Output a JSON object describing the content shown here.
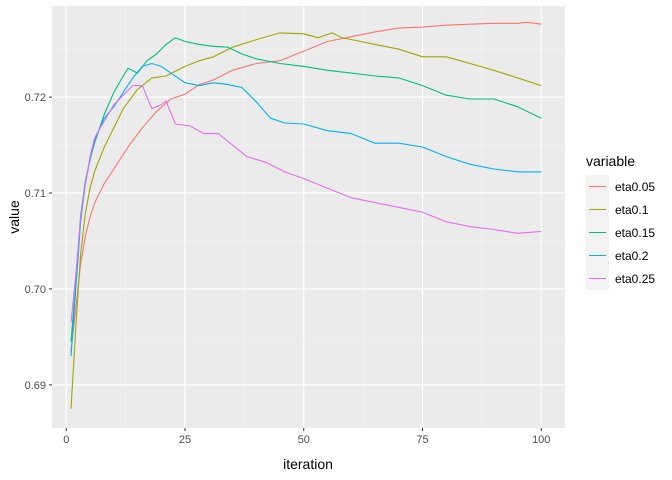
{
  "chart_data": {
    "type": "line",
    "title": "",
    "xlabel": "iteration",
    "ylabel": "value",
    "xlim": [
      -3,
      105
    ],
    "ylim": [
      0.6855,
      0.7295
    ],
    "x_ticks": [
      0,
      25,
      50,
      75,
      100
    ],
    "x_tick_labels": [
      "0",
      "25",
      "50",
      "75",
      "100"
    ],
    "y_ticks": [
      0.69,
      0.7,
      0.71,
      0.72
    ],
    "y_tick_labels": [
      "0.69",
      "0.70",
      "0.71",
      "0.72"
    ],
    "grid": true,
    "legend": {
      "title": "variable",
      "position": "right"
    },
    "series": [
      {
        "name": "eta0.05",
        "color": "#F8766D",
        "points": [
          [
            1,
            0.6935
          ],
          [
            2,
            0.698
          ],
          [
            3,
            0.7025
          ],
          [
            4,
            0.7055
          ],
          [
            5,
            0.7075
          ],
          [
            6,
            0.709
          ],
          [
            8,
            0.711
          ],
          [
            10,
            0.7125
          ],
          [
            13,
            0.7148
          ],
          [
            16,
            0.7168
          ],
          [
            19,
            0.7185
          ],
          [
            22,
            0.7198
          ],
          [
            25,
            0.7203
          ],
          [
            28,
            0.7213
          ],
          [
            31,
            0.7218
          ],
          [
            35,
            0.7228
          ],
          [
            40,
            0.7235
          ],
          [
            45,
            0.7238
          ],
          [
            50,
            0.7248
          ],
          [
            55,
            0.7258
          ],
          [
            60,
            0.7263
          ],
          [
            65,
            0.7268
          ],
          [
            70,
            0.7272
          ],
          [
            75,
            0.7273
          ],
          [
            80,
            0.7275
          ],
          [
            85,
            0.7276
          ],
          [
            90,
            0.7277
          ],
          [
            95,
            0.7277
          ],
          [
            97,
            0.7278
          ],
          [
            100,
            0.7276
          ]
        ]
      },
      {
        "name": "eta0.1",
        "color": "#A3A500",
        "points": [
          [
            1,
            0.6875
          ],
          [
            2,
            0.696
          ],
          [
            3,
            0.7035
          ],
          [
            4,
            0.7078
          ],
          [
            5,
            0.7105
          ],
          [
            6,
            0.7123
          ],
          [
            8,
            0.7148
          ],
          [
            10,
            0.7168
          ],
          [
            12,
            0.7188
          ],
          [
            15,
            0.7208
          ],
          [
            18,
            0.722
          ],
          [
            21,
            0.7222
          ],
          [
            25,
            0.7232
          ],
          [
            28,
            0.7238
          ],
          [
            31,
            0.7242
          ],
          [
            35,
            0.7252
          ],
          [
            40,
            0.726
          ],
          [
            45,
            0.7267
          ],
          [
            50,
            0.7266
          ],
          [
            53,
            0.7262
          ],
          [
            56,
            0.7267
          ],
          [
            58,
            0.7262
          ],
          [
            62,
            0.7258
          ],
          [
            66,
            0.7254
          ],
          [
            70,
            0.725
          ],
          [
            75,
            0.7242
          ],
          [
            80,
            0.7242
          ],
          [
            85,
            0.7235
          ],
          [
            90,
            0.7228
          ],
          [
            95,
            0.722
          ],
          [
            100,
            0.7212
          ]
        ]
      },
      {
        "name": "eta0.15",
        "color": "#00BF7D",
        "points": [
          [
            1,
            0.6945
          ],
          [
            2,
            0.7005
          ],
          [
            3,
            0.7075
          ],
          [
            4,
            0.7112
          ],
          [
            5,
            0.7135
          ],
          [
            6,
            0.7153
          ],
          [
            8,
            0.7182
          ],
          [
            10,
            0.7205
          ],
          [
            12,
            0.7222
          ],
          [
            13,
            0.723
          ],
          [
            15,
            0.7225
          ],
          [
            17,
            0.7238
          ],
          [
            19,
            0.7245
          ],
          [
            21,
            0.7255
          ],
          [
            23,
            0.7262
          ],
          [
            25,
            0.7258
          ],
          [
            28,
            0.7255
          ],
          [
            31,
            0.7253
          ],
          [
            34,
            0.7252
          ],
          [
            37,
            0.7245
          ],
          [
            40,
            0.724
          ],
          [
            45,
            0.7235
          ],
          [
            50,
            0.7232
          ],
          [
            55,
            0.7228
          ],
          [
            60,
            0.7225
          ],
          [
            65,
            0.7222
          ],
          [
            70,
            0.722
          ],
          [
            75,
            0.7212
          ],
          [
            80,
            0.7202
          ],
          [
            85,
            0.7198
          ],
          [
            90,
            0.7198
          ],
          [
            95,
            0.719
          ],
          [
            100,
            0.7178
          ]
        ]
      },
      {
        "name": "eta0.2",
        "color": "#00B0F6",
        "points": [
          [
            1,
            0.693
          ],
          [
            2,
            0.7
          ],
          [
            3,
            0.7068
          ],
          [
            4,
            0.711
          ],
          [
            5,
            0.7135
          ],
          [
            6,
            0.7155
          ],
          [
            8,
            0.7178
          ],
          [
            10,
            0.719
          ],
          [
            12,
            0.7205
          ],
          [
            14,
            0.722
          ],
          [
            16,
            0.7232
          ],
          [
            18,
            0.7235
          ],
          [
            20,
            0.7232
          ],
          [
            22,
            0.7225
          ],
          [
            25,
            0.7215
          ],
          [
            28,
            0.7212
          ],
          [
            31,
            0.7215
          ],
          [
            34,
            0.7213
          ],
          [
            37,
            0.721
          ],
          [
            40,
            0.7195
          ],
          [
            43,
            0.7178
          ],
          [
            46,
            0.7173
          ],
          [
            50,
            0.7172
          ],
          [
            55,
            0.7165
          ],
          [
            60,
            0.7162
          ],
          [
            65,
            0.7152
          ],
          [
            70,
            0.7152
          ],
          [
            75,
            0.7148
          ],
          [
            80,
            0.7138
          ],
          [
            85,
            0.713
          ],
          [
            90,
            0.7125
          ],
          [
            95,
            0.7122
          ],
          [
            100,
            0.7122
          ]
        ]
      },
      {
        "name": "eta0.25",
        "color": "#E76BF3",
        "points": [
          [
            1,
            0.6965
          ],
          [
            2,
            0.7015
          ],
          [
            3,
            0.7072
          ],
          [
            4,
            0.7108
          ],
          [
            5,
            0.7138
          ],
          [
            6,
            0.7158
          ],
          [
            8,
            0.7175
          ],
          [
            10,
            0.7192
          ],
          [
            12,
            0.7202
          ],
          [
            14,
            0.7212
          ],
          [
            16,
            0.7212
          ],
          [
            18,
            0.7188
          ],
          [
            20,
            0.7192
          ],
          [
            21,
            0.7196
          ],
          [
            23,
            0.7172
          ],
          [
            26,
            0.717
          ],
          [
            29,
            0.7162
          ],
          [
            32,
            0.7162
          ],
          [
            35,
            0.715
          ],
          [
            38,
            0.7138
          ],
          [
            42,
            0.7132
          ],
          [
            46,
            0.7122
          ],
          [
            50,
            0.7115
          ],
          [
            55,
            0.7105
          ],
          [
            60,
            0.7095
          ],
          [
            65,
            0.709
          ],
          [
            70,
            0.7085
          ],
          [
            75,
            0.708
          ],
          [
            80,
            0.707
          ],
          [
            85,
            0.7065
          ],
          [
            90,
            0.7062
          ],
          [
            95,
            0.7058
          ],
          [
            100,
            0.706
          ]
        ]
      }
    ]
  }
}
